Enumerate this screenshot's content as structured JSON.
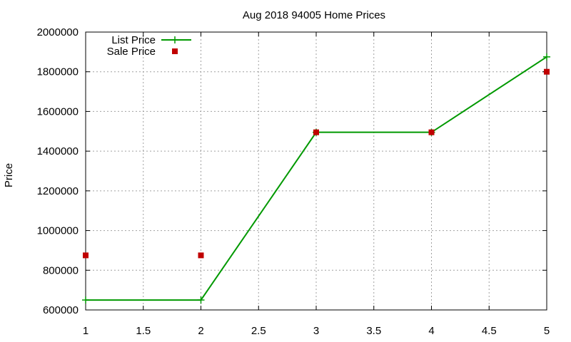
{
  "chart_data": {
    "type": "line",
    "title": "Aug 2018 94005 Home Prices",
    "xlabel": "",
    "ylabel": "Price",
    "xlim": [
      1,
      5
    ],
    "ylim": [
      600000,
      2000000
    ],
    "x_ticks": [
      "1",
      "1.5",
      "2",
      "2.5",
      "3",
      "3.5",
      "4",
      "4.5",
      "5"
    ],
    "y_ticks": [
      "600000",
      "800000",
      "1000000",
      "1200000",
      "1400000",
      "1600000",
      "1800000",
      "2000000"
    ],
    "grid": true,
    "legend_position": "top-left",
    "series": [
      {
        "name": "List Price",
        "style": "line+cross",
        "color": "#009900",
        "points": [
          [
            1,
            650000
          ],
          [
            2,
            650000
          ],
          [
            3,
            1495000
          ],
          [
            4,
            1495000
          ],
          [
            5,
            1875000
          ]
        ]
      },
      {
        "name": "Sale Price",
        "style": "square-points",
        "color": "#c00000",
        "points": [
          [
            1,
            875000
          ],
          [
            2,
            875000
          ],
          [
            3,
            1495000
          ],
          [
            4,
            1495000
          ],
          [
            5,
            1800000
          ]
        ]
      }
    ]
  }
}
